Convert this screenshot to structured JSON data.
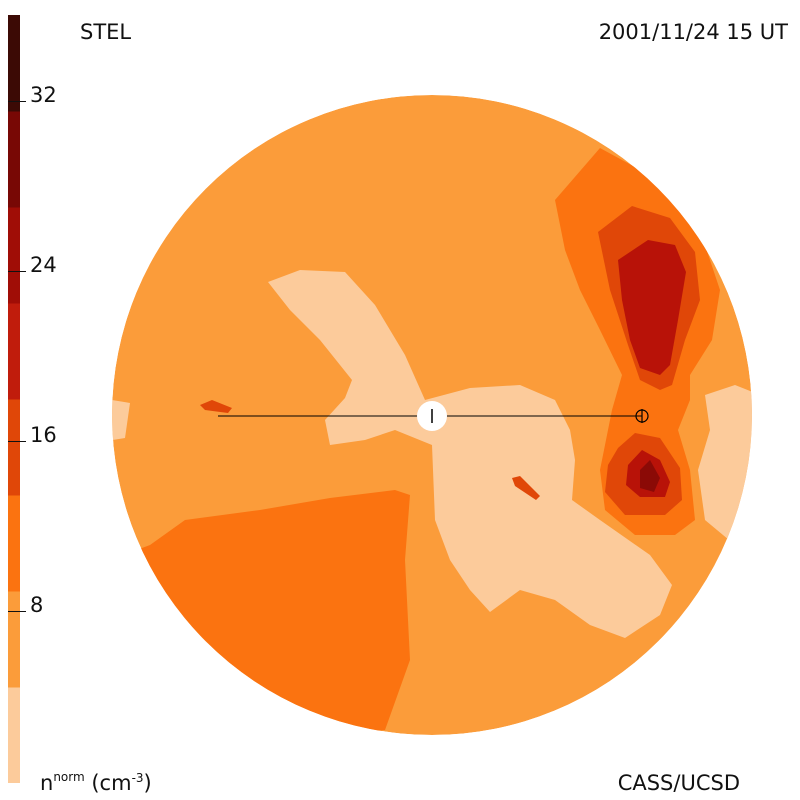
{
  "header": {
    "title": "STEL",
    "timestamp": "2001/11/24 15 UT"
  },
  "footer": {
    "credit": "CASS/UCSD",
    "units_base": "n",
    "units_super": "norm",
    "units_paren": "(cm",
    "units_exp": "-3",
    "units_close": ")"
  },
  "colorbar": {
    "ticks": [
      "8",
      "16",
      "24",
      "32"
    ],
    "levels": [
      "#fccb9b",
      "#fb9c3a",
      "#fb7310",
      "#e04708",
      "#c01c0c",
      "#a00d06",
      "#780805",
      "#3c0a05"
    ]
  },
  "map": {
    "background": "#fb9c3a",
    "contour_colors": {
      "pale": "#fccb9b",
      "base": "#fb9c3a",
      "orange": "#fb7310",
      "dark_orange": "#e04708",
      "red": "#b81208",
      "dark_red": "#8b0a06"
    }
  }
}
